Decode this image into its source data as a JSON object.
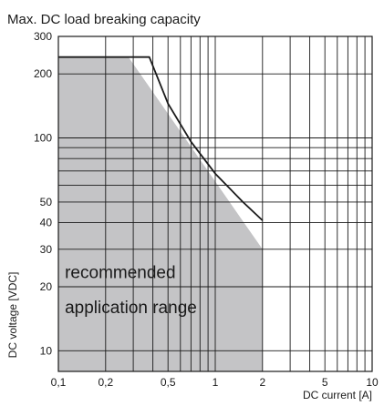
{
  "chart_data": {
    "type": "line",
    "title": "Max. DC load breaking capacity",
    "xlabel": "DC current [A]",
    "ylabel": "DC voltage [VDC]",
    "x_scale": "log",
    "y_scale": "log",
    "xlim": [
      0.1,
      10
    ],
    "ylim": [
      8,
      300
    ],
    "grid": true,
    "x_ticks": [
      {
        "value": 0.1,
        "label": "0,1"
      },
      {
        "value": 0.2,
        "label": "0,2"
      },
      {
        "value": 0.5,
        "label": "0,5"
      },
      {
        "value": 1,
        "label": "1"
      },
      {
        "value": 2,
        "label": "2"
      },
      {
        "value": 5,
        "label": "5"
      },
      {
        "value": 10,
        "label": "10"
      }
    ],
    "y_ticks": [
      {
        "value": 10,
        "label": "10"
      },
      {
        "value": 20,
        "label": "20"
      },
      {
        "value": 30,
        "label": "30"
      },
      {
        "value": 40,
        "label": "40"
      },
      {
        "value": 50,
        "label": "50"
      },
      {
        "value": 100,
        "label": "100"
      },
      {
        "value": 200,
        "label": "200"
      },
      {
        "value": 300,
        "label": "300"
      }
    ],
    "x_gridlines": [
      0.1,
      0.2,
      0.3,
      0.4,
      0.5,
      0.6,
      0.7,
      0.8,
      0.9,
      1,
      2,
      3,
      4,
      5,
      6,
      7,
      8,
      9,
      10
    ],
    "y_gridlines": [
      10,
      20,
      30,
      40,
      50,
      60,
      70,
      80,
      90,
      100,
      200,
      300
    ],
    "series": [
      {
        "type": "line",
        "color": "#1a1a1a",
        "x": [
          0.1,
          0.38,
          0.5,
          0.7,
          1,
          1.5,
          2
        ],
        "y": [
          240,
          240,
          145,
          96,
          68,
          50,
          41
        ]
      }
    ],
    "regions": [
      {
        "type": "area",
        "color": "#c4c4c6",
        "x": [
          0.1,
          0.28,
          2,
          2,
          0.1
        ],
        "y": [
          240,
          240,
          30,
          8,
          8
        ]
      }
    ],
    "annotations": [
      {
        "text": "recommended",
        "x": 0.11,
        "y": 22
      },
      {
        "text": "application range",
        "x": 0.11,
        "y": 15
      }
    ]
  }
}
